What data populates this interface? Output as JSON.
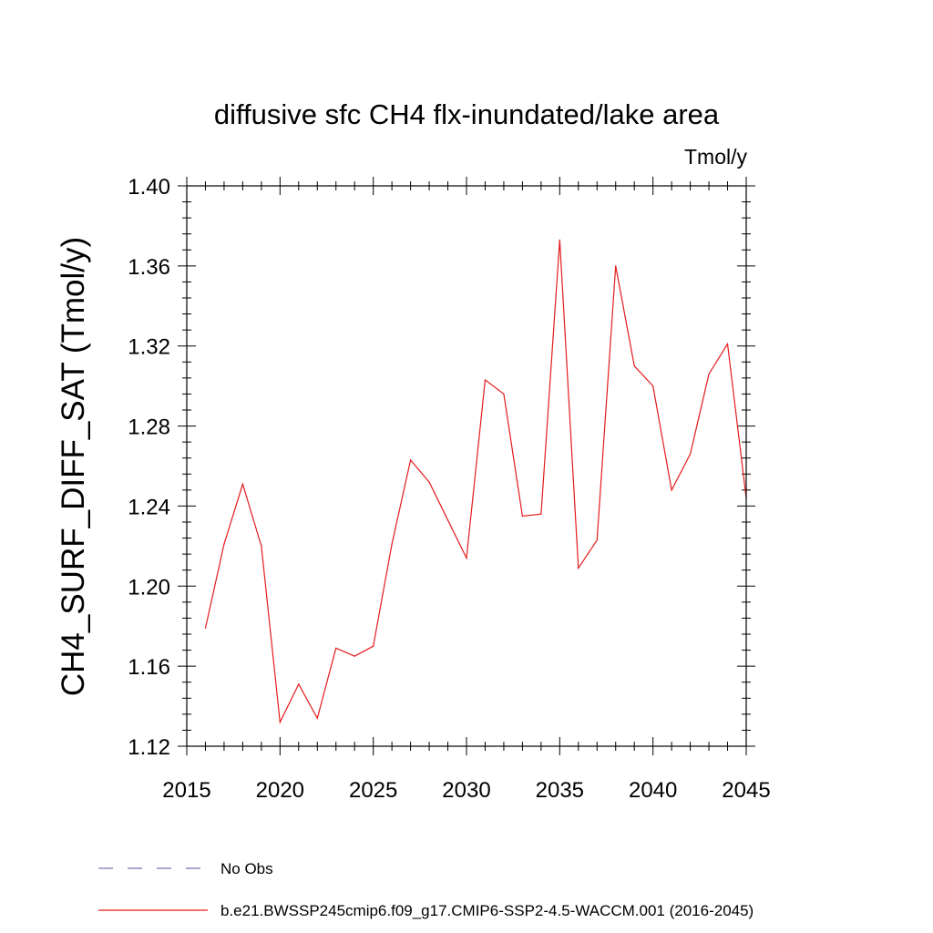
{
  "chart_data": {
    "type": "line",
    "title": "diffusive sfc CH4 flx-inundated/lake area",
    "units": "Tmol/y",
    "ylabel": "CH4_SURF_DIFF_SAT  (Tmol/y)",
    "xlabel": "",
    "xlim": [
      2015,
      2045
    ],
    "ylim": [
      1.12,
      1.4
    ],
    "xticks": [
      2015,
      2020,
      2025,
      2030,
      2035,
      2040,
      2045
    ],
    "yticks": [
      "1.12",
      "1.16",
      "1.20",
      "1.24",
      "1.28",
      "1.32",
      "1.36",
      "1.40"
    ],
    "ytick_values": [
      1.12,
      1.16,
      1.2,
      1.24,
      1.28,
      1.32,
      1.36,
      1.4
    ],
    "grid": false,
    "legend_position": "bottom-left",
    "series": [
      {
        "name": "b.e21.BWSSP245cmip6.f09_g17.CMIP6-SSP2-4.5-WACCM.001 (2016-2045)",
        "color": "#e41a1c",
        "style": "solid",
        "x": [
          2016,
          2017,
          2018,
          2019,
          2020,
          2021,
          2022,
          2023,
          2024,
          2025,
          2026,
          2027,
          2028,
          2029,
          2030,
          2031,
          2032,
          2033,
          2034,
          2035,
          2036,
          2037,
          2038,
          2039,
          2040,
          2041,
          2042,
          2043,
          2044,
          2045
        ],
        "values": [
          1.179,
          1.221,
          1.251,
          1.22,
          1.132,
          1.151,
          1.134,
          1.169,
          1.165,
          1.17,
          1.221,
          1.263,
          1.252,
          1.233,
          1.214,
          1.303,
          1.296,
          1.235,
          1.236,
          1.373,
          1.209,
          1.223,
          1.36,
          1.31,
          1.3,
          1.248,
          1.266,
          1.306,
          1.321,
          1.244
        ]
      }
    ],
    "legend": [
      {
        "label": "No Obs",
        "color": "#7d6fb0",
        "style": "dashed"
      },
      {
        "label": "b.e21.BWSSP245cmip6.f09_g17.CMIP6-SSP2-4.5-WACCM.001 (2016-2045)",
        "color": "#e41a1c",
        "style": "solid"
      }
    ]
  }
}
